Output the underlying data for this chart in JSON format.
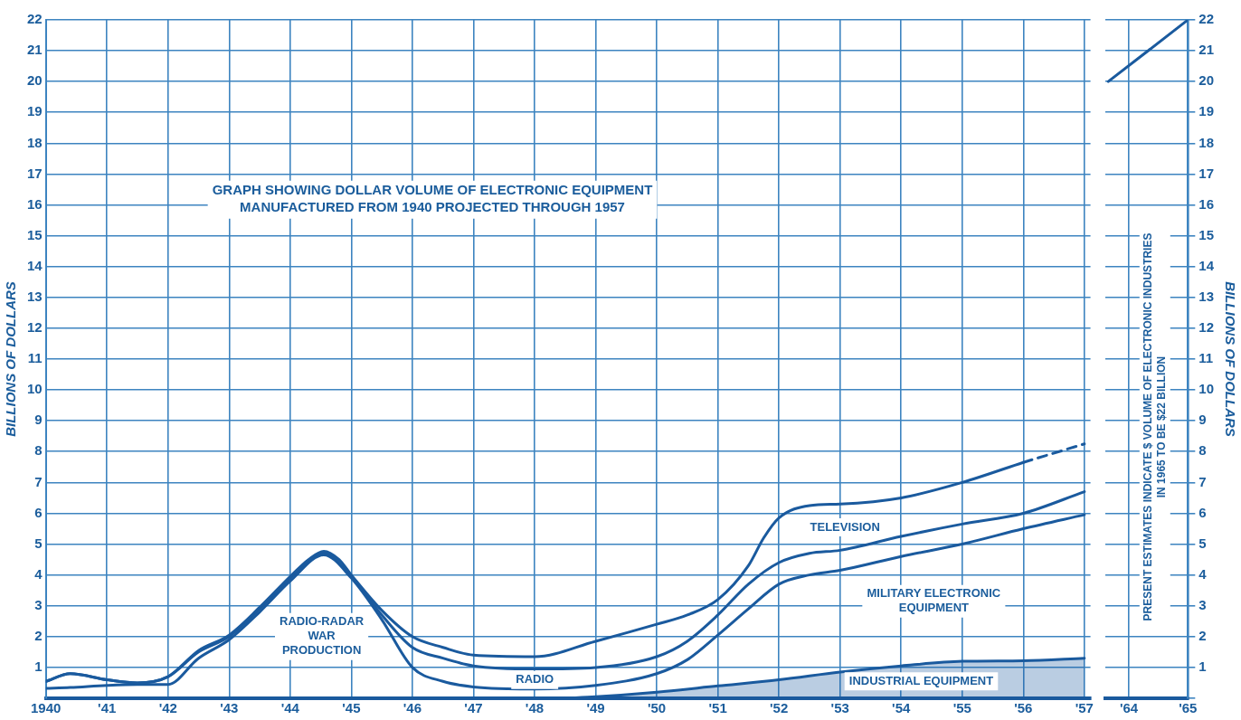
{
  "chart_data": [
    {
      "type": "line",
      "title": "GRAPH SHOWING DOLLAR VOLUME OF ELECTRONIC EQUIPMENT\nMANUFACTURED FROM 1940 PROJECTED THROUGH 1957",
      "ylabel": "BILLIONS OF DOLLARS",
      "xlim": [
        1940,
        1957.1
      ],
      "xticks": [
        {
          "value": 1940,
          "label": "1940"
        },
        {
          "value": 1941,
          "label": "'41"
        },
        {
          "value": 1942,
          "label": "'42"
        },
        {
          "value": 1943,
          "label": "'43"
        },
        {
          "value": 1944,
          "label": "'44"
        },
        {
          "value": 1945,
          "label": "'45"
        },
        {
          "value": 1946,
          "label": "'46"
        },
        {
          "value": 1947,
          "label": "'47"
        },
        {
          "value": 1948,
          "label": "'48"
        },
        {
          "value": 1949,
          "label": "'49"
        },
        {
          "value": 1950,
          "label": "'50"
        },
        {
          "value": 1951,
          "label": "'51"
        },
        {
          "value": 1952,
          "label": "'52"
        },
        {
          "value": 1953,
          "label": "'53"
        },
        {
          "value": 1954,
          "label": "'54"
        },
        {
          "value": 1955,
          "label": "'55"
        },
        {
          "value": 1956,
          "label": "'56"
        },
        {
          "value": 1957,
          "label": "'57"
        }
      ],
      "ylim": [
        0,
        22
      ],
      "yticks": [
        {
          "value": 0,
          "label": null
        },
        1,
        2,
        3,
        4,
        5,
        6,
        7,
        8,
        9,
        10,
        11,
        12,
        13,
        14,
        15,
        16,
        17,
        18,
        19,
        20,
        21,
        22
      ],
      "grid": true,
      "legend": false,
      "series": [
        {
          "color": "#1a5a9e",
          "line_style": "solid",
          "x": [
            1940,
            1940.4,
            1941,
            1941.5,
            1942,
            1942.5,
            1943,
            1943.5,
            1944,
            1944.3,
            1944.55,
            1944.8,
            1945,
            1945.5,
            1946,
            1946.5,
            1947,
            1948,
            1949,
            1950,
            1950.5,
            1951,
            1951.5,
            1951.75,
            1952,
            1952.5,
            1953,
            1954,
            1955,
            1956
          ],
          "values": [
            0.55,
            0.8,
            0.6,
            0.5,
            0.7,
            1.55,
            2.05,
            2.95,
            3.95,
            4.5,
            4.77,
            4.5,
            4.0,
            2.85,
            2.0,
            1.65,
            1.4,
            1.35,
            1.85,
            2.4,
            2.7,
            3.2,
            4.3,
            5.2,
            5.85,
            6.25,
            6.3,
            6.5,
            7.0,
            7.65
          ]
        },
        {
          "color": "#1a5a9e",
          "line_style": "dashed",
          "x": [
            1956,
            1957
          ],
          "values": [
            7.65,
            8.25
          ]
        },
        {
          "color": "#1a5a9e",
          "line_style": "solid",
          "x": [
            1940,
            1940.4,
            1941,
            1941.5,
            1942,
            1942.5,
            1943,
            1943.5,
            1944,
            1944.55,
            1945,
            1945.5,
            1946,
            1946.5,
            1947,
            1948,
            1949,
            1950,
            1950.5,
            1951,
            1951.5,
            1952,
            1952.5,
            1953,
            1954,
            1955,
            1956,
            1957
          ],
          "values": [
            0.55,
            0.8,
            0.6,
            0.5,
            0.7,
            1.5,
            2.0,
            2.9,
            3.9,
            4.7,
            3.95,
            2.7,
            1.65,
            1.3,
            1.05,
            0.95,
            1.0,
            1.35,
            1.85,
            2.7,
            3.7,
            4.4,
            4.7,
            4.8,
            5.25,
            5.65,
            6.0,
            6.7
          ]
        },
        {
          "color": "#1a5a9e",
          "line_style": "solid",
          "x": [
            1940,
            1940.4,
            1941,
            1941.5,
            1942,
            1942.5,
            1943,
            1943.5,
            1944,
            1944.55,
            1945,
            1945.5,
            1946,
            1946.5,
            1947,
            1948,
            1949,
            1950,
            1950.5,
            1951,
            1951.5,
            1952,
            1952.5,
            1953,
            1954,
            1955,
            1956,
            1957
          ],
          "values": [
            0.32,
            0.35,
            0.42,
            0.45,
            0.45,
            1.3,
            1.9,
            2.8,
            3.8,
            4.65,
            3.9,
            2.55,
            1.0,
            0.55,
            0.37,
            0.3,
            0.42,
            0.8,
            1.25,
            2.05,
            2.9,
            3.7,
            4.0,
            4.15,
            4.6,
            5.0,
            5.5,
            5.95
          ]
        },
        {
          "type": "area",
          "color": "#1a5a9e",
          "line_style": "solid",
          "x": [
            1948.5,
            1949,
            1950,
            1951,
            1952,
            1953,
            1954,
            1955,
            1956,
            1957
          ],
          "values": [
            0,
            0.05,
            0.2,
            0.4,
            0.6,
            0.85,
            1.05,
            1.2,
            1.22,
            1.3
          ]
        }
      ],
      "annotations": [
        "RADIO-RADAR\nWAR\nPRODUCTION",
        "RADIO",
        "TELEVISION",
        "MILITARY ELECTRONIC\nEQUIPMENT",
        "INDUSTRIAL EQUIPMENT"
      ]
    },
    {
      "type": "line",
      "ylabel": "BILLIONS OF DOLLARS",
      "xlim": [
        1963.6,
        1965
      ],
      "xticks": [
        {
          "value": 1964,
          "label": "'64"
        },
        {
          "value": 1965,
          "label": "'65"
        }
      ],
      "ylim": [
        0,
        22
      ],
      "yticks": [
        {
          "value": 0,
          "label": null
        },
        1,
        2,
        3,
        4,
        5,
        6,
        7,
        8,
        9,
        10,
        11,
        12,
        13,
        14,
        15,
        16,
        17,
        18,
        19,
        20,
        21,
        22
      ],
      "grid": true,
      "legend": false,
      "series": [
        {
          "color": "#1a5a9e",
          "line_style": "solid",
          "x": [
            1963.65,
            1965
          ],
          "values": [
            20,
            22
          ]
        }
      ],
      "annotations": [
        "PRESENT ESTIMATES INDICATE $ VOLUME OF ELECTRONIC INDUSTRIES\nIN 1965 TO BE $22 BILLION"
      ]
    }
  ]
}
